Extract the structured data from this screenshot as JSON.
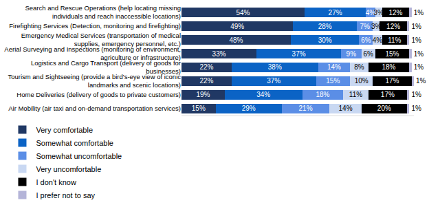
{
  "chart_data": {
    "type": "bar",
    "orientation": "horizontal",
    "stacked": true,
    "data_labels": true,
    "tick_labels": "y",
    "legend": "bottom",
    "grid": false,
    "xlim": [
      0,
      102
    ],
    "xticks": [],
    "categories": [
      "Search and Rescue Operations (help locating missing individuals and reach inaccessible locations)",
      "Firefighting Services (Detection, monitoring and firefighting)",
      "Emergency Medical Services (transportation of medical supplies, emergency personnel, etc.)",
      "Aerial Surveying and Inspections (monitoring of environment, agriculture or infrastructure)",
      "Logistics and Cargo Transport (delivery of goods for businesses)",
      "Tourism and Sightseeing (provide a bird's-eye view of iconic landmarks and scenic locations)",
      "Home Deliveries (delivery of goods to private customers)",
      "Air Mobility (air taxi and on-demand transportation services)"
    ],
    "series": [
      {
        "name": "Very comfortable",
        "color": "#203864",
        "values": [
          54,
          49,
          48,
          33,
          22,
          22,
          19,
          15
        ],
        "value_labels": [
          "54%",
          "49%",
          "48%",
          "33%",
          "22%",
          "22%",
          "19%",
          "15%"
        ]
      },
      {
        "name": "Somewhat comfortable",
        "color": "#0B63C5",
        "values": [
          27,
          28,
          30,
          37,
          38,
          37,
          34,
          29
        ],
        "value_labels": [
          "27%",
          "28%",
          "30%",
          "37%",
          "38%",
          "37%",
          "34%",
          "29%"
        ]
      },
      {
        "name": "Somewhat uncomfortable",
        "color": "#5B8EE6",
        "values": [
          4,
          7,
          6,
          9,
          14,
          15,
          18,
          21
        ],
        "value_labels": [
          "4%",
          "7%",
          "6%",
          "9%",
          "14%",
          "15%",
          "18%",
          "21%"
        ]
      },
      {
        "name": "Very uncomfortable",
        "color": "#C9D8F2",
        "values": [
          3,
          3,
          4,
          6,
          8,
          10,
          11,
          14
        ],
        "value_labels": [
          "3%",
          "3%",
          "4%",
          "6%",
          "8%",
          "10%",
          "11%",
          "14%"
        ]
      },
      {
        "name": "I don't know",
        "color": "#000000",
        "values": [
          12,
          12,
          11,
          15,
          18,
          17,
          17,
          20
        ],
        "value_labels": [
          "12%",
          "12%",
          "11%",
          "15%",
          "18%",
          "17%",
          "17%",
          "20%"
        ]
      },
      {
        "name": "I prefer not to say",
        "color": "#B4B4D8",
        "values": [
          1,
          1,
          1,
          1,
          1,
          1,
          1,
          1
        ],
        "value_labels": [
          "1%",
          "1%",
          "1%",
          "1%",
          "1%",
          "1%",
          "1%",
          "1%"
        ]
      }
    ]
  }
}
